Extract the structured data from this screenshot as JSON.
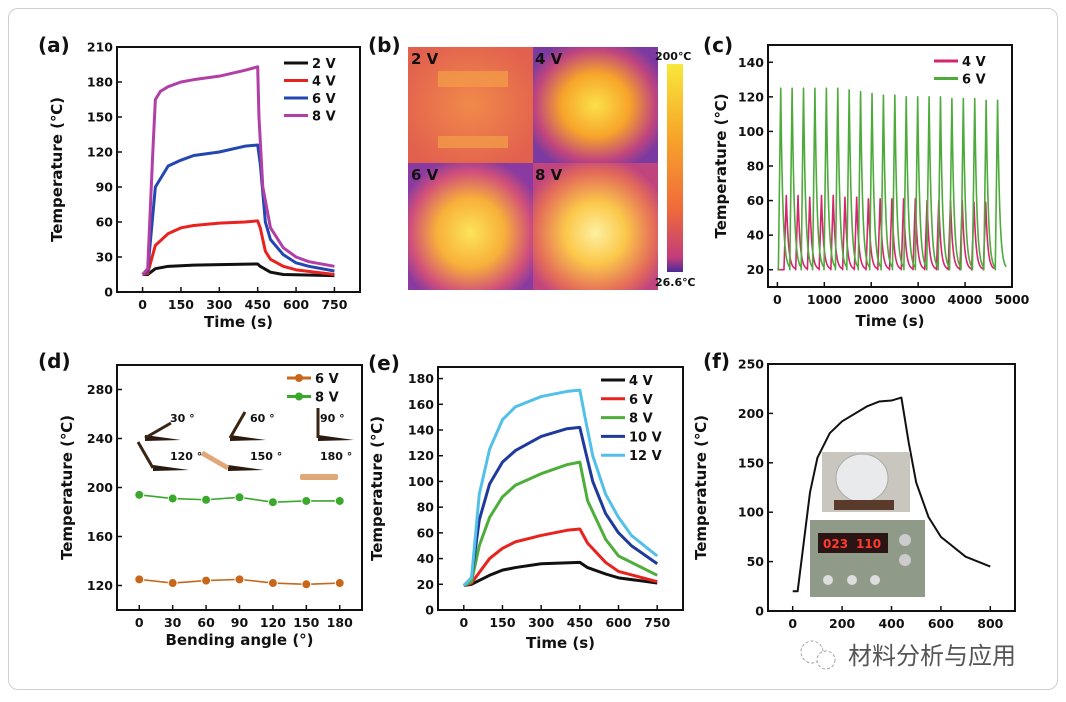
{
  "panels": {
    "a": "(a)",
    "b": "(b)",
    "c": "(c)",
    "d": "(d)",
    "e": "(e)",
    "f": "(f)"
  },
  "thermal": {
    "quadrants": [
      "2 V",
      "4 V",
      "6 V",
      "8 V"
    ],
    "colorbar_max": "200℃",
    "colorbar_min": "26.6℃",
    "colorbar_colors": [
      "#f7e83a",
      "#f7a52a",
      "#ef6a3a",
      "#c23d7a",
      "#4a2a9a"
    ]
  },
  "inset_f": {
    "display_left": "023",
    "display_right": "110"
  },
  "watermark": {
    "text": "材料分析与应用",
    "icon": "wechat-icon"
  },
  "chart_data": [
    {
      "id": "a",
      "type": "line",
      "xlabel": "Time (s)",
      "ylabel": "Temperature (℃)",
      "xlim": [
        -100,
        850
      ],
      "ylim": [
        0,
        210
      ],
      "xticks": [
        0,
        150,
        300,
        450,
        600,
        750
      ],
      "yticks": [
        0,
        30,
        60,
        90,
        120,
        150,
        180,
        210
      ],
      "legend": "top-right",
      "series": [
        {
          "name": "2 V",
          "color": "#111111",
          "points": [
            [
              0,
              15
            ],
            [
              20,
              15
            ],
            [
              50,
              20
            ],
            [
              100,
              22
            ],
            [
              200,
              23
            ],
            [
              300,
              23.5
            ],
            [
              450,
              24
            ],
            [
              460,
              22
            ],
            [
              500,
              17
            ],
            [
              550,
              15
            ],
            [
              750,
              14
            ]
          ]
        },
        {
          "name": "4 V",
          "color": "#e8231f",
          "points": [
            [
              0,
              15
            ],
            [
              20,
              16
            ],
            [
              50,
              40
            ],
            [
              100,
              50
            ],
            [
              150,
              55
            ],
            [
              200,
              57
            ],
            [
              300,
              59
            ],
            [
              400,
              60
            ],
            [
              450,
              61
            ],
            [
              460,
              55
            ],
            [
              480,
              35
            ],
            [
              500,
              28
            ],
            [
              550,
              22
            ],
            [
              600,
              19
            ],
            [
              750,
              15
            ]
          ]
        },
        {
          "name": "6 V",
          "color": "#2347b0",
          "points": [
            [
              0,
              15
            ],
            [
              20,
              18
            ],
            [
              50,
              90
            ],
            [
              100,
              108
            ],
            [
              150,
              113
            ],
            [
              200,
              117
            ],
            [
              300,
              120
            ],
            [
              400,
              125
            ],
            [
              450,
              126
            ],
            [
              460,
              110
            ],
            [
              480,
              60
            ],
            [
              500,
              45
            ],
            [
              550,
              32
            ],
            [
              600,
              25
            ],
            [
              650,
              22
            ],
            [
              750,
              18
            ]
          ]
        },
        {
          "name": "8 V",
          "color": "#b23fa6",
          "points": [
            [
              0,
              15
            ],
            [
              20,
              20
            ],
            [
              40,
              120
            ],
            [
              50,
              165
            ],
            [
              70,
              172
            ],
            [
              100,
              176
            ],
            [
              150,
              180
            ],
            [
              200,
              182
            ],
            [
              300,
              185
            ],
            [
              400,
              190
            ],
            [
              450,
              193
            ],
            [
              455,
              150
            ],
            [
              470,
              90
            ],
            [
              500,
              55
            ],
            [
              550,
              38
            ],
            [
              600,
              30
            ],
            [
              650,
              26
            ],
            [
              750,
              22
            ]
          ]
        }
      ]
    },
    {
      "id": "c",
      "type": "line",
      "xlabel": "Time (s)",
      "ylabel": "Temperature (℃)",
      "xlim": [
        -200,
        5000
      ],
      "ylim": [
        10,
        150
      ],
      "xticks": [
        0,
        1000,
        2000,
        3000,
        4000,
        5000
      ],
      "yticks": [
        20,
        40,
        60,
        80,
        100,
        120,
        140
      ],
      "legend": "top-right",
      "series": [
        {
          "name": "4 V",
          "color": "#d6256e",
          "baseline": 20,
          "peak_times": [
            190,
            440,
            690,
            940,
            1190,
            1440,
            1690,
            1940,
            2190,
            2440,
            2690,
            2940,
            3190,
            3440,
            3690,
            3940,
            4190,
            4440
          ],
          "peak_values": [
            63,
            63,
            62,
            63,
            63,
            62,
            62,
            61,
            61,
            61,
            61,
            61,
            60,
            60,
            60,
            60,
            59,
            59
          ]
        },
        {
          "name": "6 V",
          "color": "#4faa3c",
          "baseline": 20,
          "peak_times": [
            71,
            314,
            557,
            800,
            1044,
            1287,
            1530,
            1773,
            2017,
            2260,
            2503,
            2746,
            2990,
            3233,
            3476,
            3719,
            3963,
            4206,
            4449,
            4693
          ],
          "peak_values": [
            125,
            125,
            125,
            125,
            125,
            125,
            124,
            123,
            122,
            121,
            121,
            120,
            120,
            120,
            120,
            119,
            119,
            119,
            118,
            118
          ]
        }
      ]
    },
    {
      "id": "d",
      "type": "line",
      "xlabel": "Bending angle (°)",
      "ylabel": "Temperature (℃)",
      "xlim": [
        -20,
        200
      ],
      "ylim": [
        100,
        300
      ],
      "xticks": [
        0,
        30,
        60,
        90,
        120,
        150,
        180
      ],
      "yticks": [
        120,
        160,
        200,
        240,
        280
      ],
      "legend": "top-right",
      "x": [
        0,
        30,
        60,
        90,
        120,
        150,
        180
      ],
      "series": [
        {
          "name": "6 V",
          "color": "#c8671a",
          "values": [
            125,
            122,
            124,
            125,
            122,
            121,
            122
          ]
        },
        {
          "name": "8 V",
          "color": "#3aa82a",
          "values": [
            194,
            191,
            190,
            192,
            188,
            189,
            189
          ]
        }
      ],
      "annotations": [
        "30 °",
        "60 °",
        "90 °",
        "120 °",
        "150 °",
        "180 °"
      ]
    },
    {
      "id": "e",
      "type": "line",
      "xlabel": "Time (s)",
      "ylabel": "Temperature (℃)",
      "xlim": [
        -100,
        850
      ],
      "ylim": [
        0,
        189
      ],
      "xticks": [
        0,
        150,
        300,
        450,
        600,
        750
      ],
      "yticks": [
        0,
        20,
        40,
        60,
        80,
        100,
        120,
        140,
        160,
        180
      ],
      "legend": "top-right",
      "series": [
        {
          "name": "4 V",
          "color": "#111111",
          "points": [
            [
              0,
              19
            ],
            [
              30,
              20
            ],
            [
              100,
              27
            ],
            [
              150,
              31
            ],
            [
              200,
              33
            ],
            [
              300,
              36
            ],
            [
              450,
              37
            ],
            [
              480,
              33
            ],
            [
              550,
              28
            ],
            [
              600,
              25
            ],
            [
              750,
              21
            ]
          ]
        },
        {
          "name": "6 V",
          "color": "#e8231f",
          "points": [
            [
              0,
              19
            ],
            [
              30,
              21
            ],
            [
              100,
              40
            ],
            [
              150,
              48
            ],
            [
              200,
              53
            ],
            [
              300,
              58
            ],
            [
              400,
              62
            ],
            [
              450,
              63
            ],
            [
              480,
              52
            ],
            [
              550,
              37
            ],
            [
              600,
              30
            ],
            [
              750,
              22
            ]
          ]
        },
        {
          "name": "8 V",
          "color": "#4fad3b",
          "points": [
            [
              0,
              19
            ],
            [
              30,
              22
            ],
            [
              60,
              50
            ],
            [
              100,
              72
            ],
            [
              150,
              88
            ],
            [
              200,
              97
            ],
            [
              300,
              106
            ],
            [
              400,
              113
            ],
            [
              450,
              115
            ],
            [
              460,
              105
            ],
            [
              480,
              85
            ],
            [
              550,
              55
            ],
            [
              600,
              42
            ],
            [
              750,
              27
            ]
          ]
        },
        {
          "name": "10 V",
          "color": "#1f3a9a",
          "points": [
            [
              0,
              19
            ],
            [
              30,
              25
            ],
            [
              60,
              70
            ],
            [
              100,
              98
            ],
            [
              150,
              115
            ],
            [
              200,
              124
            ],
            [
              300,
              135
            ],
            [
              400,
              141
            ],
            [
              450,
              142
            ],
            [
              470,
              125
            ],
            [
              500,
              100
            ],
            [
              550,
              75
            ],
            [
              600,
              60
            ],
            [
              650,
              50
            ],
            [
              750,
              36
            ]
          ]
        },
        {
          "name": "12 V",
          "color": "#52c0e8",
          "points": [
            [
              0,
              19
            ],
            [
              30,
              25
            ],
            [
              60,
              90
            ],
            [
              100,
              125
            ],
            [
              150,
              148
            ],
            [
              200,
              158
            ],
            [
              300,
              166
            ],
            [
              400,
              170
            ],
            [
              450,
              171
            ],
            [
              470,
              150
            ],
            [
              500,
              120
            ],
            [
              550,
              90
            ],
            [
              600,
              72
            ],
            [
              650,
              58
            ],
            [
              750,
              42
            ]
          ]
        }
      ]
    },
    {
      "id": "f",
      "type": "line",
      "xlabel": "",
      "ylabel": "Temperature (℃)",
      "xlim": [
        -100,
        900
      ],
      "ylim": [
        0,
        250
      ],
      "xticks": [
        0,
        200,
        400,
        600,
        800
      ],
      "yticks": [
        0,
        50,
        100,
        150,
        200,
        250
      ],
      "series": [
        {
          "color": "#111111",
          "points": [
            [
              0,
              20
            ],
            [
              20,
              20
            ],
            [
              40,
              60
            ],
            [
              70,
              120
            ],
            [
              100,
              155
            ],
            [
              150,
              180
            ],
            [
              200,
              192
            ],
            [
              300,
              207
            ],
            [
              350,
              212
            ],
            [
              400,
              213
            ],
            [
              440,
              216
            ],
            [
              470,
              170
            ],
            [
              500,
              130
            ],
            [
              550,
              95
            ],
            [
              600,
              75
            ],
            [
              700,
              55
            ],
            [
              800,
              45
            ]
          ]
        }
      ]
    }
  ]
}
